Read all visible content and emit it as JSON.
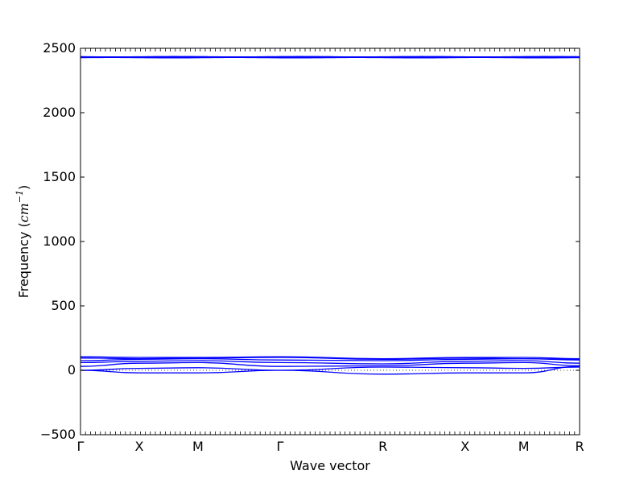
{
  "chart_data": {
    "type": "line",
    "xlabel": "Wave vector",
    "ylabel_prefix": "Frequency (",
    "ylabel_unit": "cm",
    "ylabel_exp": "−1",
    "ylabel_suffix": ")",
    "ylim": [
      -500,
      2500
    ],
    "yticks": [
      -500,
      0,
      500,
      1000,
      1500,
      2000,
      2500
    ],
    "ytick_labels": [
      "−500",
      "0",
      "500",
      "1000",
      "1500",
      "2000",
      "2500"
    ],
    "xlim": [
      0,
      8.5
    ],
    "xtick_positions": [
      0,
      1,
      2,
      3.4,
      5.15,
      6.55,
      7.55,
      8.5
    ],
    "xtick_labels": [
      "Γ",
      "X",
      "M",
      "Γ",
      "R",
      "X",
      "M",
      "R"
    ],
    "grid": false,
    "line_color": "#0000ff",
    "zero_line_color": "#000000",
    "optical_branch_freqs": [
      2427,
      2430,
      2433,
      2435
    ],
    "acoustic_branches": [
      {
        "x": [
          0,
          1,
          2,
          3.4,
          5.15,
          6.55,
          7.55,
          8.5
        ],
        "y": [
          0,
          -20,
          -20,
          0,
          -30,
          -20,
          -20,
          30
        ]
      },
      {
        "x": [
          0,
          1,
          2,
          3.4,
          5.15,
          6.55,
          7.55,
          8.5
        ],
        "y": [
          0,
          15,
          20,
          0,
          25,
          20,
          15,
          25
        ]
      },
      {
        "x": [
          0,
          1,
          2,
          3.4,
          5.15,
          6.55,
          7.55,
          8.5
        ],
        "y": [
          30,
          55,
          60,
          30,
          35,
          55,
          60,
          35
        ]
      },
      {
        "x": [
          0,
          1,
          2,
          3.4,
          5.15,
          6.55,
          7.55,
          8.5
        ],
        "y": [
          60,
          70,
          75,
          60,
          50,
          70,
          75,
          55
        ]
      },
      {
        "x": [
          0,
          1,
          2,
          3.4,
          5.15,
          6.55,
          7.55,
          8.5
        ],
        "y": [
          75,
          85,
          90,
          80,
          75,
          85,
          90,
          80
        ]
      },
      {
        "x": [
          0,
          1,
          2,
          3.4,
          5.15,
          6.55,
          7.55,
          8.5
        ],
        "y": [
          95,
          90,
          95,
          100,
          85,
          95,
          90,
          85
        ]
      },
      {
        "x": [
          0,
          1,
          2,
          3.4,
          5.15,
          6.55,
          7.55,
          8.5
        ],
        "y": [
          105,
          100,
          100,
          105,
          90,
          100,
          100,
          90
        ]
      }
    ]
  }
}
